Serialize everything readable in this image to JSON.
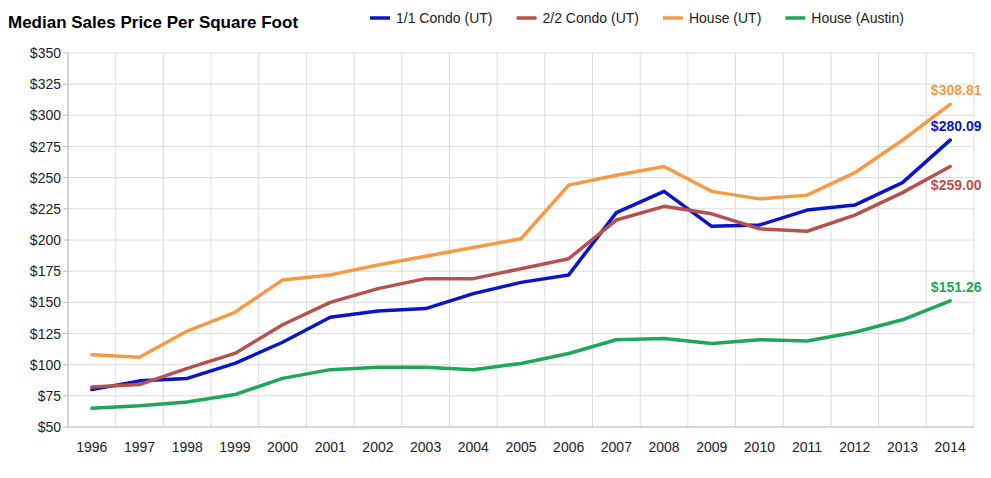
{
  "chart_data": {
    "type": "line",
    "title": "Median Sales Price Per Square Foot",
    "categories": [
      "1996",
      "1997",
      "1998",
      "1999",
      "2000",
      "2001",
      "2002",
      "2003",
      "2004",
      "2005",
      "2006",
      "2007",
      "2008",
      "2009",
      "2010",
      "2011",
      "2012",
      "2013",
      "2014"
    ],
    "series": [
      {
        "name": "1/1 Condo (UT)",
        "color": "#0a14c8",
        "values": [
          80,
          87,
          89,
          101,
          118,
          138,
          143,
          145,
          157,
          166,
          172,
          222,
          239,
          211,
          212,
          224,
          228,
          246,
          280.09
        ],
        "value_labels": [
          null,
          null,
          null,
          null,
          null,
          null,
          null,
          null,
          null,
          null,
          null,
          null,
          null,
          null,
          null,
          null,
          null,
          null,
          "$280.09"
        ]
      },
      {
        "name": "2/2 Condo (UT)",
        "color": "#b5524d",
        "values": [
          82,
          84,
          97,
          109,
          132,
          150,
          161,
          169,
          169,
          177,
          185,
          216,
          227,
          221,
          209,
          207,
          220,
          238,
          259.0
        ],
        "value_labels": [
          null,
          null,
          null,
          null,
          null,
          null,
          null,
          null,
          null,
          null,
          null,
          null,
          null,
          null,
          null,
          null,
          null,
          null,
          "$259.00"
        ]
      },
      {
        "name": "House (UT)",
        "color": "#f79a46",
        "values": [
          108,
          106,
          127,
          142,
          168,
          172,
          180,
          187,
          194,
          201,
          244,
          252,
          259,
          239,
          233,
          236,
          254,
          280,
          308.81
        ],
        "value_labels": [
          null,
          null,
          null,
          null,
          null,
          null,
          null,
          null,
          null,
          null,
          null,
          null,
          null,
          null,
          null,
          null,
          null,
          null,
          "$308.81"
        ]
      },
      {
        "name": "House (Austin)",
        "color": "#1ea65a",
        "values": [
          65,
          67,
          70,
          76,
          89,
          96,
          98,
          98,
          96,
          101,
          109,
          120,
          121,
          117,
          120,
          119,
          126,
          136,
          151.26
        ],
        "value_labels": [
          null,
          null,
          null,
          null,
          null,
          null,
          null,
          null,
          null,
          null,
          null,
          null,
          null,
          null,
          null,
          null,
          null,
          null,
          "$151.26"
        ]
      }
    ],
    "ylim": [
      50,
      350
    ],
    "yticks": [
      {
        "value": 50,
        "label": "$50"
      },
      {
        "value": 75,
        "label": "$75"
      },
      {
        "value": 100,
        "label": "$100"
      },
      {
        "value": 125,
        "label": "$125"
      },
      {
        "value": 150,
        "label": "$150"
      },
      {
        "value": 175,
        "label": "$175"
      },
      {
        "value": 200,
        "label": "$200"
      },
      {
        "value": 225,
        "label": "$225"
      },
      {
        "value": 250,
        "label": "$250"
      },
      {
        "value": 275,
        "label": "$275"
      },
      {
        "value": 300,
        "label": "$300"
      },
      {
        "value": 325,
        "label": "$325"
      },
      {
        "value": 350,
        "label": "$350"
      }
    ],
    "grid": true,
    "legend": "top"
  }
}
